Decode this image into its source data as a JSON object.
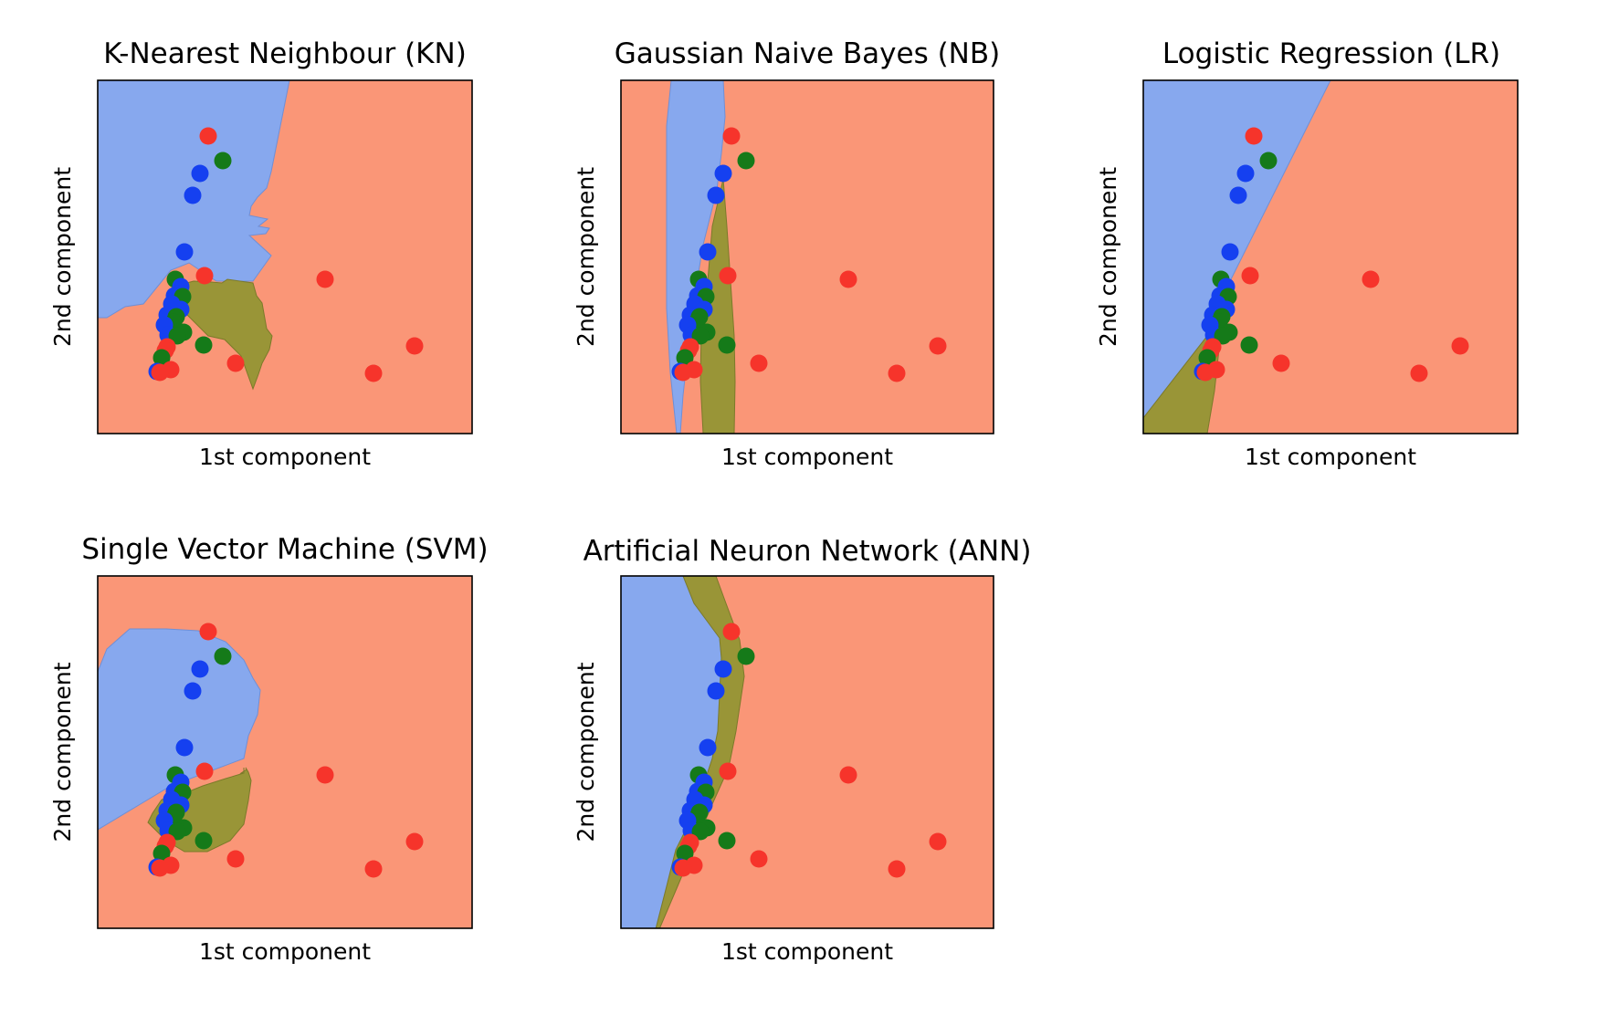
{
  "figure": {
    "region_colors": {
      "blue": "#87a8ee",
      "red": "#fa9677",
      "olive": "#999537"
    },
    "point_colors": {
      "blue": "#1540f0",
      "red": "#f6342b",
      "green": "#157a19"
    }
  },
  "chart_data": [
    {
      "type": "scatter",
      "title": "K-Nearest Neighbour (KN)",
      "xlabel": "1st component",
      "ylabel": "2nd component"
    },
    {
      "type": "scatter",
      "title": "Gaussian Naive Bayes (NB)",
      "xlabel": "1st component",
      "ylabel": "2nd component"
    },
    {
      "type": "scatter",
      "title": "Logistic Regression (LR)",
      "xlabel": "1st component",
      "ylabel": "2nd component"
    },
    {
      "type": "scatter",
      "title": "Single Vector Machine (SVM)",
      "xlabel": "1st component",
      "ylabel": "2nd component"
    },
    {
      "type": "scatter",
      "title": "Artificial Neuron Network (ANN)",
      "xlabel": "1st component",
      "ylabel": "2nd component"
    }
  ]
}
